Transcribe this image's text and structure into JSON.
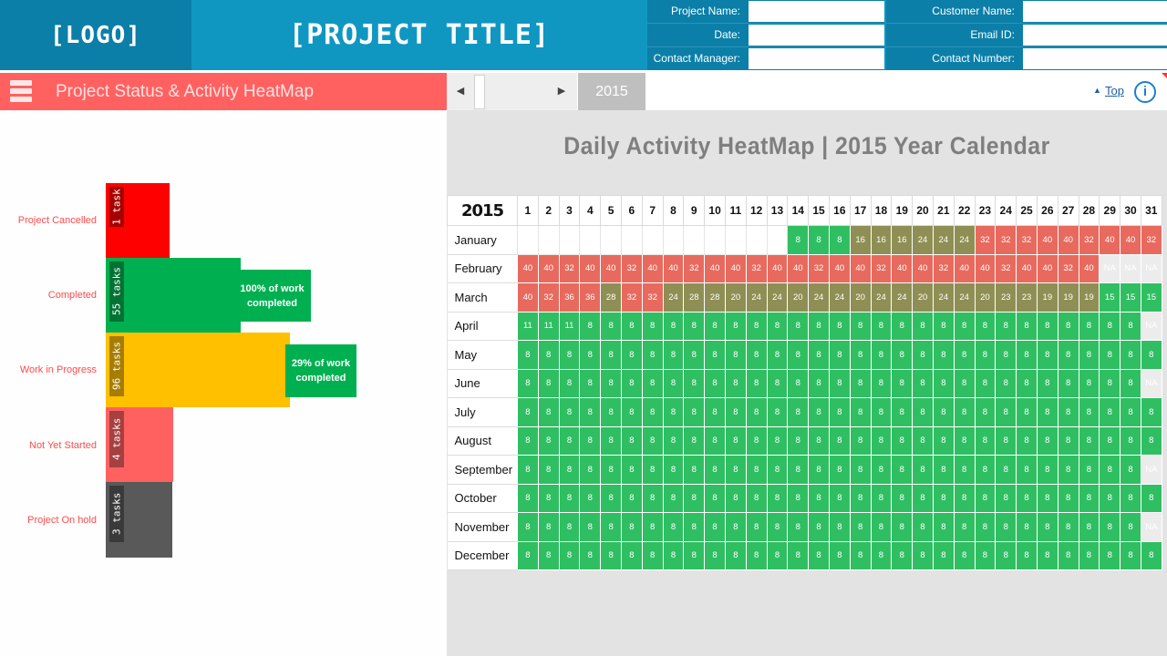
{
  "header": {
    "logo": "[LOGO]",
    "title": "[PROJECT TITLE]",
    "project_name_label": "Project Name:",
    "date_label": "Date:",
    "contact_manager_label": "Contact Manager:",
    "customer_name_label": "Customer Name:",
    "email_label": "Email ID:",
    "contact_number_label": "Contact Number:"
  },
  "status_panel": {
    "title": "Project Status & Activity HeatMap",
    "bars": [
      {
        "label": "Project Cancelled",
        "tag": "1 task",
        "color": "#ff0000",
        "callout": ""
      },
      {
        "label": "Completed",
        "tag": "55 tasks",
        "color": "#00b050",
        "callout": "100% of work completed"
      },
      {
        "label": "Work in Progress",
        "tag": "96 tasks",
        "color": "#ffc000",
        "callout": "29% of work completed"
      },
      {
        "label": "Not Yet Started",
        "tag": "4 tasks",
        "color": "#ff6161",
        "callout": ""
      },
      {
        "label": "Project On hold",
        "tag": "3 tasks",
        "color": "#595959",
        "callout": ""
      }
    ]
  },
  "toolbar": {
    "year": "2015",
    "top_link": "Top",
    "info_icon": "i"
  },
  "heatmap": {
    "title": "Daily Activity HeatMap | 2015 Year Calendar",
    "year": "2015",
    "days": [
      "1",
      "2",
      "3",
      "4",
      "5",
      "6",
      "7",
      "8",
      "9",
      "10",
      "11",
      "12",
      "13",
      "14",
      "15",
      "16",
      "17",
      "18",
      "19",
      "20",
      "21",
      "22",
      "23",
      "24",
      "25",
      "26",
      "27",
      "28",
      "29",
      "30",
      "31"
    ],
    "colors": {
      "low": "#2fbf62",
      "mid": "#8f8f55",
      "high": "#e86a5e",
      "na": "#ececec",
      "empty": "#ffffff"
    },
    "months": [
      {
        "name": "January",
        "values": [
          "",
          "",
          "",
          "",
          "",
          "",
          "",
          "",
          "",
          "",
          "",
          "",
          "",
          "8",
          "8",
          "8",
          "16",
          "16",
          "16",
          "24",
          "24",
          "24",
          "32",
          "32",
          "32",
          "40",
          "40",
          "32",
          "40",
          "40",
          "32"
        ]
      },
      {
        "name": "February",
        "values": [
          "40",
          "40",
          "32",
          "40",
          "40",
          "32",
          "40",
          "40",
          "32",
          "40",
          "40",
          "32",
          "40",
          "40",
          "32",
          "40",
          "40",
          "32",
          "40",
          "40",
          "32",
          "40",
          "40",
          "32",
          "40",
          "40",
          "32",
          "40",
          "NA",
          "NA",
          "NA"
        ]
      },
      {
        "name": "March",
        "values": [
          "40",
          "32",
          "36",
          "36",
          "28",
          "32",
          "32",
          "24",
          "28",
          "28",
          "20",
          "24",
          "24",
          "20",
          "24",
          "24",
          "20",
          "24",
          "24",
          "20",
          "24",
          "24",
          "20",
          "23",
          "23",
          "19",
          "19",
          "19",
          "15",
          "15",
          "15"
        ]
      },
      {
        "name": "April",
        "values": [
          "11",
          "11",
          "11",
          "8",
          "8",
          "8",
          "8",
          "8",
          "8",
          "8",
          "8",
          "8",
          "8",
          "8",
          "8",
          "8",
          "8",
          "8",
          "8",
          "8",
          "8",
          "8",
          "8",
          "8",
          "8",
          "8",
          "8",
          "8",
          "8",
          "8",
          "NA"
        ]
      },
      {
        "name": "May",
        "values": [
          "8",
          "8",
          "8",
          "8",
          "8",
          "8",
          "8",
          "8",
          "8",
          "8",
          "8",
          "8",
          "8",
          "8",
          "8",
          "8",
          "8",
          "8",
          "8",
          "8",
          "8",
          "8",
          "8",
          "8",
          "8",
          "8",
          "8",
          "8",
          "8",
          "8",
          "8"
        ]
      },
      {
        "name": "June",
        "values": [
          "8",
          "8",
          "8",
          "8",
          "8",
          "8",
          "8",
          "8",
          "8",
          "8",
          "8",
          "8",
          "8",
          "8",
          "8",
          "8",
          "8",
          "8",
          "8",
          "8",
          "8",
          "8",
          "8",
          "8",
          "8",
          "8",
          "8",
          "8",
          "8",
          "8",
          "NA"
        ]
      },
      {
        "name": "July",
        "values": [
          "8",
          "8",
          "8",
          "8",
          "8",
          "8",
          "8",
          "8",
          "8",
          "8",
          "8",
          "8",
          "8",
          "8",
          "8",
          "8",
          "8",
          "8",
          "8",
          "8",
          "8",
          "8",
          "8",
          "8",
          "8",
          "8",
          "8",
          "8",
          "8",
          "8",
          "8"
        ]
      },
      {
        "name": "August",
        "values": [
          "8",
          "8",
          "8",
          "8",
          "8",
          "8",
          "8",
          "8",
          "8",
          "8",
          "8",
          "8",
          "8",
          "8",
          "8",
          "8",
          "8",
          "8",
          "8",
          "8",
          "8",
          "8",
          "8",
          "8",
          "8",
          "8",
          "8",
          "8",
          "8",
          "8",
          "8"
        ]
      },
      {
        "name": "September",
        "values": [
          "8",
          "8",
          "8",
          "8",
          "8",
          "8",
          "8",
          "8",
          "8",
          "8",
          "8",
          "8",
          "8",
          "8",
          "8",
          "8",
          "8",
          "8",
          "8",
          "8",
          "8",
          "8",
          "8",
          "8",
          "8",
          "8",
          "8",
          "8",
          "8",
          "8",
          "NA"
        ]
      },
      {
        "name": "October",
        "values": [
          "8",
          "8",
          "8",
          "8",
          "8",
          "8",
          "8",
          "8",
          "8",
          "8",
          "8",
          "8",
          "8",
          "8",
          "8",
          "8",
          "8",
          "8",
          "8",
          "8",
          "8",
          "8",
          "8",
          "8",
          "8",
          "8",
          "8",
          "8",
          "8",
          "8",
          "8"
        ]
      },
      {
        "name": "November",
        "values": [
          "8",
          "8",
          "8",
          "8",
          "8",
          "8",
          "8",
          "8",
          "8",
          "8",
          "8",
          "8",
          "8",
          "8",
          "8",
          "8",
          "8",
          "8",
          "8",
          "8",
          "8",
          "8",
          "8",
          "8",
          "8",
          "8",
          "8",
          "8",
          "8",
          "8",
          "NA"
        ]
      },
      {
        "name": "December",
        "values": [
          "8",
          "8",
          "8",
          "8",
          "8",
          "8",
          "8",
          "8",
          "8",
          "8",
          "8",
          "8",
          "8",
          "8",
          "8",
          "8",
          "8",
          "8",
          "8",
          "8",
          "8",
          "8",
          "8",
          "8",
          "8",
          "8",
          "8",
          "8",
          "8",
          "8",
          "8"
        ]
      }
    ]
  }
}
